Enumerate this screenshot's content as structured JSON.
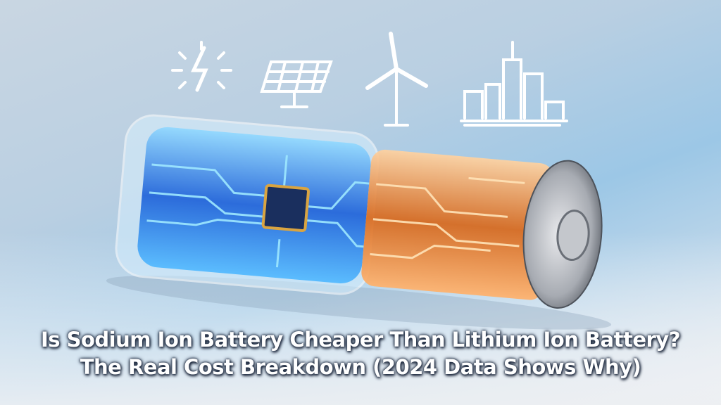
{
  "headline": {
    "line1": "Is Sodium Ion Battery Cheaper Than Lithium Ion Battery?",
    "line2": "The Real Cost Breakdown (2024 Data Shows Why)"
  }
}
